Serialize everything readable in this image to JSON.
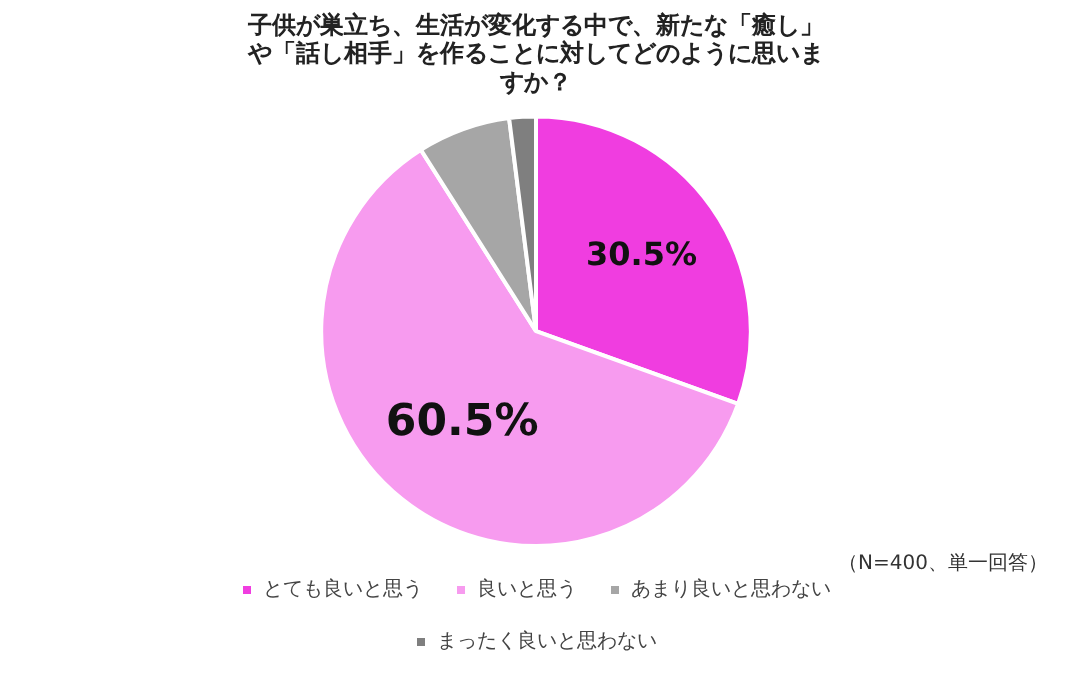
{
  "chart_data": {
    "type": "pie",
    "title": "子供が巣立ち、生活が変化する中で、新たな「癒し」や「話し相手」を作ることに対してどのように思いますか？",
    "categories": [
      "とても良いと思う",
      "良いと思う",
      "あまり良いと思わない",
      "まったく良いと思わない"
    ],
    "values": [
      30.5,
      60.5,
      7,
      2
    ],
    "colors": [
      "#f03de0",
      "#f79bef",
      "#a6a6a6",
      "#7f7f7f"
    ],
    "value_labels": [
      "30.5%",
      "60.5%",
      null,
      null
    ],
    "legend": "bottom",
    "annotations": [
      "（N=400、単一回答）"
    ]
  }
}
